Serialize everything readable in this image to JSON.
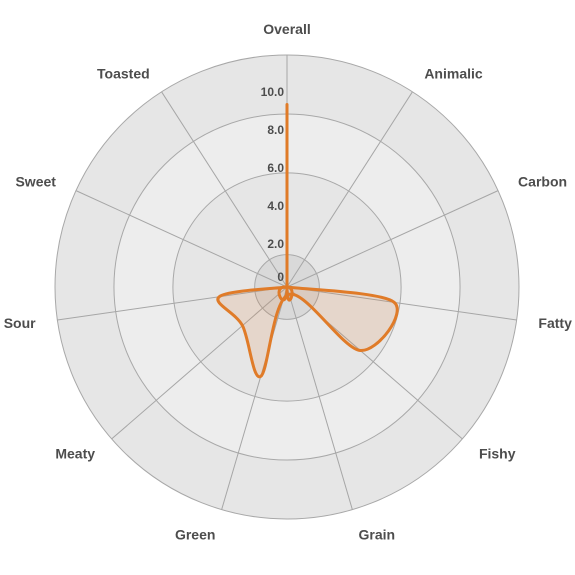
{
  "chart_data": {
    "type": "radar",
    "title": "",
    "axes": [
      "Overall",
      "Animalic",
      "Carbon",
      "Fatty",
      "Fishy",
      "Grain",
      "Green",
      "Meaty",
      "Sour",
      "Sweet",
      "Toasted"
    ],
    "rlim": [
      0,
      12.2
    ],
    "ticks": [
      {
        "value": 0,
        "label": "0"
      },
      {
        "value": 2,
        "label": "2.0"
      },
      {
        "value": 4,
        "label": "4.0"
      },
      {
        "value": 6,
        "label": "6.0"
      },
      {
        "value": 8,
        "label": "8.0"
      },
      {
        "value": 10,
        "label": "10.0"
      }
    ],
    "rings": [
      {
        "value": 1.7,
        "fill": "#d9d9d9"
      },
      {
        "value": 6.0,
        "fill": "#e6e6e6"
      },
      {
        "value": 9.1,
        "fill": "#ededed"
      },
      {
        "value": 12.2,
        "fill": "#e6e6e6"
      }
    ],
    "grid": true,
    "series": [
      {
        "color": "#e07b28",
        "values": [
          9.6,
          0,
          0,
          5.7,
          5.1,
          0.4,
          4.9,
          3.1,
          3.6,
          0,
          0
        ],
        "smooth": true
      }
    ]
  }
}
